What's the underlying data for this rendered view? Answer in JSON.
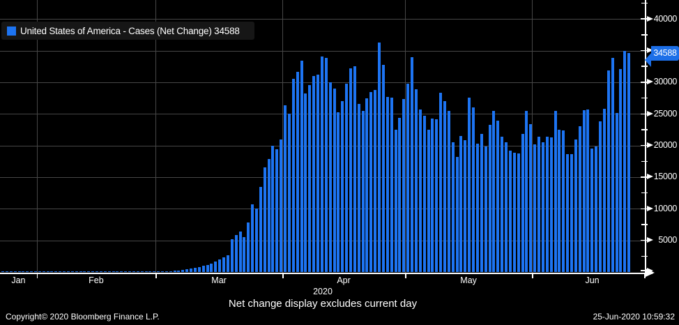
{
  "legend": {
    "text": "United States of America - Cases (Net Change) 34588"
  },
  "axis_tag": {
    "value": "34588"
  },
  "footer": {
    "subtitle": "Net change display excludes current day",
    "copyright": "Copyright© 2020 Bloomberg Finance L.P.",
    "timestamp": "25-Jun-2020 10:59:32"
  },
  "colors": {
    "bar": "#1d74f2",
    "tag_bg": "#1c6fe8",
    "grid": "#474747",
    "axis": "#ffffff",
    "background": "#000000",
    "legend_bg": "#161616"
  },
  "chart_data": {
    "type": "bar",
    "title": "United States of America - Cases (Net Change)",
    "last_value": 34588,
    "grid": true,
    "legend_position": "top-left",
    "ylim": [
      0,
      42500
    ],
    "yticks": [
      5000,
      10000,
      15000,
      20000,
      25000,
      30000,
      35000,
      40000
    ],
    "ytick_hidden_by_tag": 35000,
    "ytick_minor_step": 2500,
    "year_label": "2020",
    "months": [
      {
        "label": "Jan",
        "days": 9
      },
      {
        "label": "Feb",
        "days": 29
      },
      {
        "label": "Mar",
        "days": 31
      },
      {
        "label": "Apr",
        "days": 30
      },
      {
        "label": "May",
        "days": 31
      },
      {
        "label": "Jun",
        "days": 24
      }
    ],
    "values": [
      1,
      1,
      2,
      1,
      3,
      1,
      2,
      4,
      6,
      3,
      2,
      4,
      3,
      2,
      5,
      3,
      4,
      6,
      8,
      5,
      6,
      7,
      8,
      9,
      10,
      12,
      14,
      13,
      15,
      18,
      20,
      24,
      28,
      34,
      40,
      48,
      55,
      62,
      70,
      90,
      120,
      160,
      220,
      280,
      340,
      430,
      520,
      640,
      780,
      950,
      1150,
      1380,
      1650,
      1950,
      2300,
      2700,
      5200,
      5900,
      6400,
      5500,
      7800,
      10700,
      10000,
      13500,
      16500,
      17850,
      20000,
      19400,
      21000,
      26400,
      25000,
      30600,
      31700,
      33400,
      28200,
      29500,
      31000,
      31200,
      34100,
      33800,
      30000,
      29000,
      25300,
      27000,
      29800,
      32200,
      32500,
      26600,
      25500,
      27450,
      28450,
      28740,
      36230,
      32790,
      27640,
      27600,
      22470,
      24400,
      27300,
      29800,
      34000,
      28850,
      25700,
      24700,
      22470,
      24230,
      24150,
      28380,
      26980,
      25440,
      20560,
      18250,
      21550,
      20810,
      27530,
      26060,
      20300,
      21840,
      19820,
      23300,
      25500,
      23930,
      21400,
      20560,
      19200,
      18900,
      18720,
      21840,
      25500,
      23370,
      20180,
      21400,
      20560,
      21400,
      21290,
      25430,
      22470,
      22400,
      18610,
      18610,
      21000,
      23000,
      25620,
      25680,
      19560,
      19890,
      23860,
      25800,
      31900,
      33900,
      25100,
      32100,
      34950,
      34588
    ]
  }
}
